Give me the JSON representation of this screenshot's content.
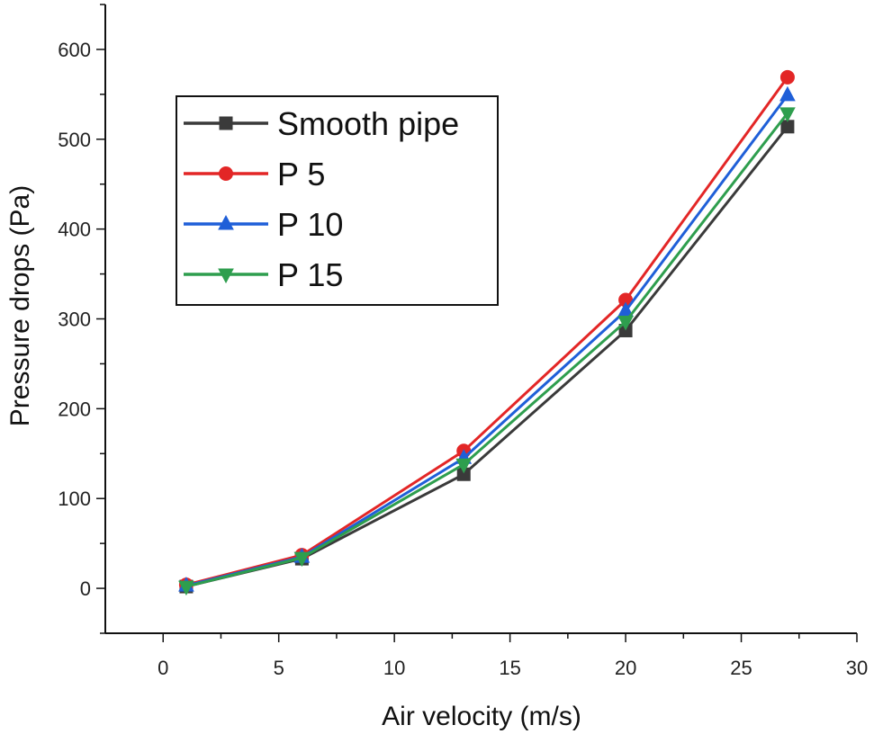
{
  "chart_data": {
    "type": "line",
    "title": "",
    "xlabel": "Air velocity (m/s)",
    "ylabel": "Pressure drops (Pa)",
    "xlim": [
      -2.5,
      30
    ],
    "ylim": [
      -50,
      650
    ],
    "xticks": [
      0,
      5,
      10,
      15,
      20,
      25,
      30
    ],
    "yticks": [
      0,
      100,
      200,
      300,
      400,
      500,
      600
    ],
    "x": [
      1,
      6,
      13,
      20,
      27
    ],
    "legend_position": "top-left",
    "grid": false,
    "series": [
      {
        "name": "Smooth pipe",
        "color": "#3a3a3a",
        "marker": "square",
        "values": [
          2,
          33,
          127,
          287,
          514
        ]
      },
      {
        "name": "P 5",
        "color": "#e32626",
        "marker": "circle",
        "values": [
          4,
          37,
          153,
          321,
          569
        ]
      },
      {
        "name": "P 10",
        "color": "#1f5fd8",
        "marker": "triangle-up",
        "values": [
          3,
          35,
          145,
          309,
          549
        ]
      },
      {
        "name": "P 15",
        "color": "#2e9e4e",
        "marker": "triangle-down",
        "values": [
          2,
          34,
          138,
          297,
          529
        ]
      }
    ]
  }
}
